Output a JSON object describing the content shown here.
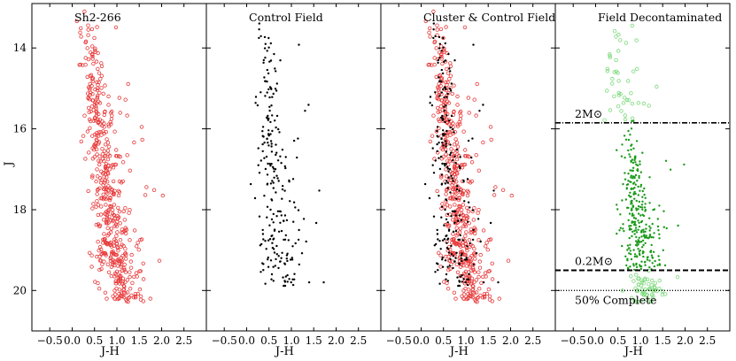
{
  "figure": {
    "xlabel": "J-H",
    "ylabel": "J",
    "xlim": [
      -0.9,
      3.0
    ],
    "ylim": [
      21.0,
      12.9
    ],
    "xticks": [
      -0.5,
      0.0,
      0.5,
      1.0,
      1.5,
      2.0,
      2.5
    ],
    "xtick_labels": [
      "−0.5",
      "0.0",
      "0.5",
      "1.0",
      "1.5",
      "2.0",
      "2.5"
    ],
    "yticks": [
      14,
      16,
      18,
      20
    ],
    "ytick_labels": [
      "14",
      "16",
      "18",
      "20"
    ]
  },
  "chart_data": [
    {
      "type": "scatter",
      "title": "Sh2-266",
      "series": [
        {
          "marker": "open-circle",
          "color": "#e8393a",
          "cloud": {
            "j_range": [
              13.0,
              20.3
            ],
            "center_jh_top": 0.3,
            "center_jh_bottom": 1.1,
            "approx_count": 520
          }
        }
      ]
    },
    {
      "type": "scatter",
      "title": "Control Field",
      "series": [
        {
          "marker": "filled-dot",
          "color": "#000000",
          "cloud": {
            "j_range": [
              13.2,
              19.9
            ],
            "center_jh_top": 0.35,
            "center_jh_bottom": 0.8,
            "approx_count": 240
          }
        }
      ]
    },
    {
      "type": "scatter",
      "title": "Cluster & Control Field",
      "series": [
        {
          "marker": "open-circle",
          "color": "#e8393a",
          "cloud": {
            "j_range": [
              13.0,
              20.3
            ],
            "center_jh_top": 0.3,
            "center_jh_bottom": 1.1,
            "approx_count": 520
          }
        },
        {
          "marker": "filled-dot",
          "color": "#000000",
          "cloud": {
            "j_range": [
              13.2,
              19.9
            ],
            "center_jh_top": 0.35,
            "center_jh_bottom": 0.8,
            "approx_count": 240
          }
        }
      ]
    },
    {
      "type": "scatter",
      "title": "Field Decontaminated",
      "series": [
        {
          "marker": "open-circle",
          "color": "#7ad97a",
          "cloud": {
            "j_range": [
              13.0,
              15.8
            ],
            "center_jh_top": 0.3,
            "center_jh_bottom": 0.7,
            "approx_count": 45
          }
        },
        {
          "marker": "filled-dot",
          "color": "#1a9a1a",
          "cloud": {
            "j_range": [
              15.8,
              19.5
            ],
            "center_jh_top": 0.75,
            "center_jh_bottom": 1.05,
            "approx_count": 300
          }
        },
        {
          "marker": "open-circle",
          "color": "#7ad97a",
          "cloud": {
            "j_range": [
              19.5,
              20.3
            ],
            "center_jh_top": 1.05,
            "center_jh_bottom": 1.15,
            "approx_count": 60
          }
        }
      ],
      "hlines": [
        {
          "j": 15.85,
          "style": "dashdot",
          "label": "2M⊙"
        },
        {
          "j": 19.5,
          "style": "dashed",
          "label": "0.2M⊙"
        },
        {
          "j": 20.0,
          "style": "dotted",
          "label": "50% Complete"
        }
      ]
    }
  ]
}
